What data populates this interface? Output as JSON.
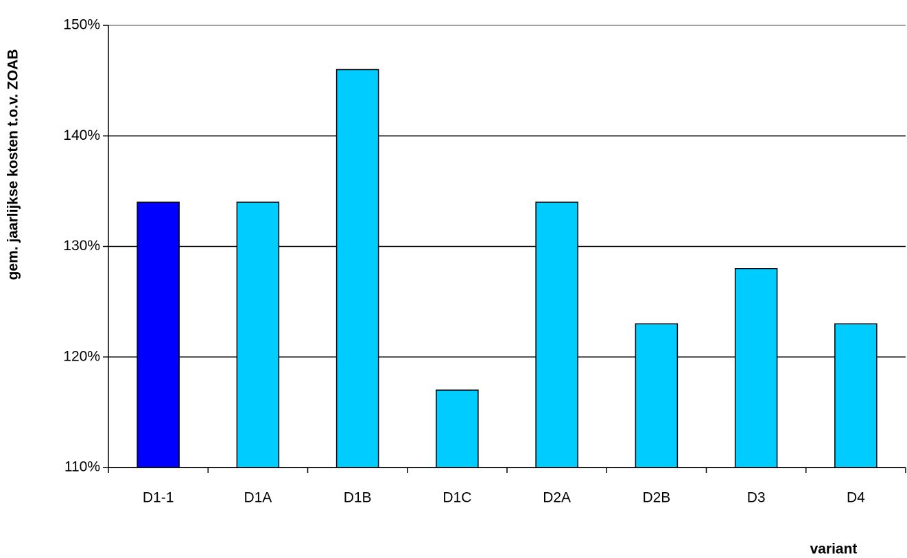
{
  "chart_data": {
    "type": "bar",
    "y_label": "gem. jaarlijkse kosten t.o.v. ZOAB",
    "x_label": "variant",
    "categories": [
      "D1-1",
      "D1A",
      "D1B",
      "D1C",
      "D2A",
      "D2B",
      "D3",
      "D4"
    ],
    "values": [
      134,
      134,
      146,
      117,
      134,
      123,
      128,
      123
    ],
    "colors": [
      "#0000ff",
      "#00ccff",
      "#00ccff",
      "#00ccff",
      "#00ccff",
      "#00ccff",
      "#00ccff",
      "#00ccff"
    ],
    "ylim": [
      110,
      150
    ],
    "yticks": [
      {
        "value": 110,
        "label": "110%"
      },
      {
        "value": 120,
        "label": "120%"
      },
      {
        "value": 130,
        "label": "130%"
      },
      {
        "value": 140,
        "label": "140%"
      },
      {
        "value": 150,
        "label": "150%"
      }
    ],
    "grid": true
  }
}
